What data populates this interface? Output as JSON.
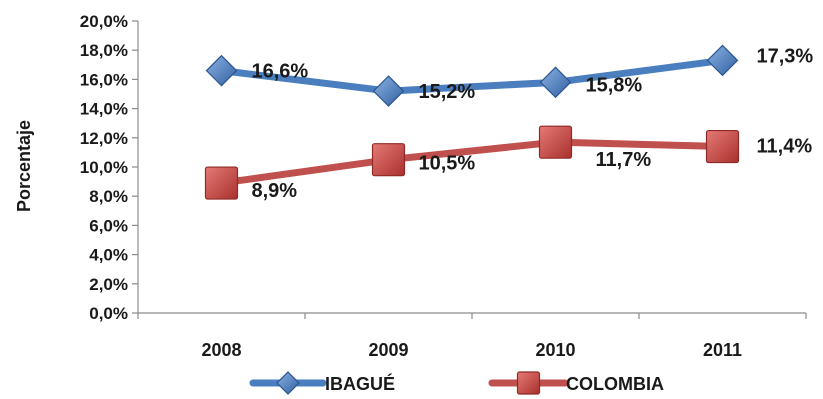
{
  "chart_data": {
    "type": "line",
    "categories": [
      "2008",
      "2009",
      "2010",
      "2011"
    ],
    "ylabel": "Porcentaje",
    "ylim": [
      0,
      20
    ],
    "ytick_step": 2,
    "ytick_labels": [
      "0,0%",
      "2,0%",
      "4,0%",
      "6,0%",
      "8,0%",
      "10,0%",
      "12,0%",
      "14,0%",
      "16,0%",
      "18,0%",
      "20,0%"
    ],
    "grid": false,
    "legend_position": "bottom",
    "series": [
      {
        "name": "IBAGUÉ",
        "values": [
          16.6,
          15.2,
          15.8,
          17.3
        ],
        "labels": [
          "16,6%",
          "15,2%",
          "15,8%",
          "17,3%"
        ],
        "color": "#4a7ebf",
        "marker": "diamond"
      },
      {
        "name": "COLOMBIA",
        "values": [
          8.9,
          10.5,
          11.7,
          11.4
        ],
        "labels": [
          "8,9%",
          "10,5%",
          "11,7%",
          "11,4%"
        ],
        "color": "#c0504d",
        "marker": "square"
      }
    ]
  }
}
